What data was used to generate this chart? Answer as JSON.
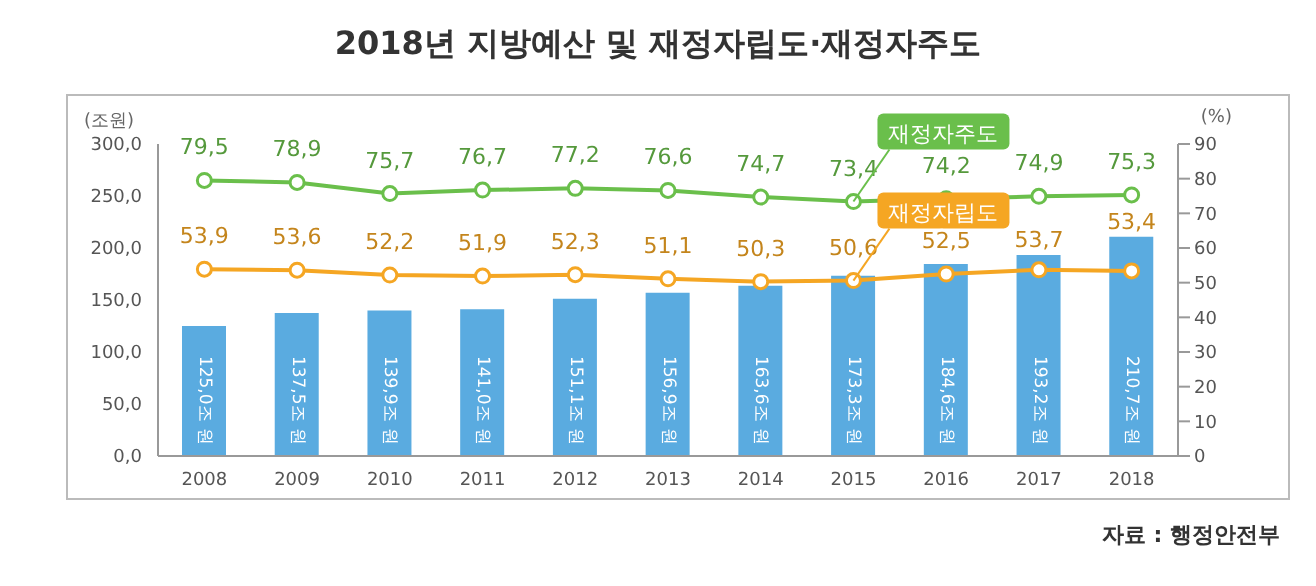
{
  "chart_data": {
    "type": "bar",
    "title": "2018년 지방예산 및 재정자립도·재정자주도",
    "ylabel": "(조원)",
    "y2label": "(%)",
    "annotations": [
      "자료 : 행정안전부"
    ],
    "categories": [
      "2008",
      "2009",
      "2010",
      "2011",
      "2012",
      "2013",
      "2014",
      "2015",
      "2016",
      "2017",
      "2018"
    ],
    "series": [
      {
        "color": "#5aabe0",
        "values": [
          125.0,
          137.5,
          139.9,
          141.0,
          151.1,
          156.9,
          163.6,
          173.3,
          184.6,
          193.2,
          210.7
        ],
        "value_labels": [
          "125,0조 원",
          "137,5조 원",
          "139,9조 원",
          "141,0조 원",
          "151,1조 원",
          "156,9조 원",
          "163,6조 원",
          "173,3조 원",
          "184,6조 원",
          "193,2조 원",
          "210,7조 원"
        ]
      },
      {
        "type": "line",
        "name": "재정자주도",
        "axis": "y2",
        "color": "#6abf4b",
        "values": [
          79.5,
          78.9,
          75.7,
          76.7,
          77.2,
          76.6,
          74.7,
          73.4,
          74.2,
          74.9,
          75.3
        ],
        "value_labels": [
          "79,5",
          "78,9",
          "75,7",
          "76,7",
          "77,2",
          "76,6",
          "74,7",
          "73,4",
          "74,2",
          "74,9",
          "75,3"
        ]
      },
      {
        "type": "line",
        "name": "재정자립도",
        "axis": "y2",
        "color": "#f5a623",
        "values": [
          53.9,
          53.6,
          52.2,
          51.9,
          52.3,
          51.1,
          50.3,
          50.6,
          52.5,
          53.7,
          53.4
        ],
        "value_labels": [
          "53,9",
          "53,6",
          "52,2",
          "51,9",
          "52,3",
          "51,1",
          "50,3",
          "50,6",
          "52,5",
          "53,7",
          "53,4"
        ]
      }
    ],
    "ylim": [
      0,
      300
    ],
    "yticks": [
      {
        "value": 0,
        "label": "0,0"
      },
      {
        "value": 50,
        "label": "50,0"
      },
      {
        "value": 100,
        "label": "100,0"
      },
      {
        "value": 150,
        "label": "150,0"
      },
      {
        "value": 200,
        "label": "200,0"
      },
      {
        "value": 250,
        "label": "250,0"
      },
      {
        "value": 300,
        "label": "300,0"
      }
    ],
    "y2lim": [
      0,
      90
    ],
    "y2ticks": [
      0,
      10,
      20,
      30,
      40,
      50,
      60,
      70,
      80,
      90
    ],
    "marker": "circle",
    "grid": false,
    "legend": false
  }
}
